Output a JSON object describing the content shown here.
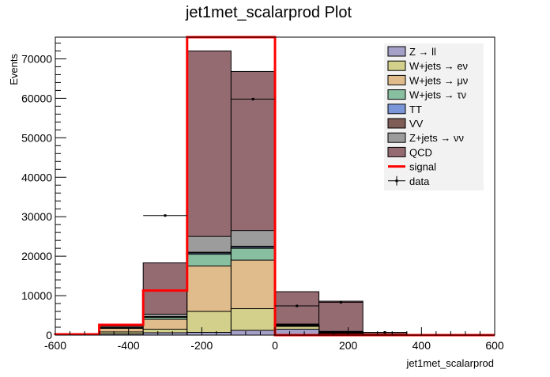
{
  "chart_data": {
    "type": "histogram-stacked",
    "title": "jet1met_scalarprod Plot",
    "xlabel": "jet1met_scalarprod",
    "ylabel": "Events",
    "xlim": [
      -600,
      600
    ],
    "ylim": [
      0,
      75500
    ],
    "x_ticks": [
      -600,
      -400,
      -200,
      0,
      200,
      400,
      600
    ],
    "y_ticks": [
      0,
      10000,
      20000,
      30000,
      40000,
      50000,
      60000,
      70000
    ],
    "x_tick_labels": [
      "-600",
      "-400",
      "-200",
      "0",
      "200",
      "400",
      "600"
    ],
    "y_tick_labels": [
      "0",
      "10000",
      "20000",
      "30000",
      "40000",
      "50000",
      "60000",
      "70000"
    ],
    "bin_edges": [
      -600,
      -480,
      -360,
      -240,
      -120,
      0,
      120,
      240,
      360,
      480,
      600
    ],
    "cumulative_stack": [
      {
        "name": "Z → ll",
        "color": "#a5a0c8",
        "values": [
          0,
          300,
          600,
          700,
          1200,
          1500,
          400,
          100,
          0,
          0
        ]
      },
      {
        "name": "W+jets → eν",
        "color": "#d2d08a",
        "values": [
          0,
          800,
          1500,
          6000,
          6700,
          2200,
          600,
          150,
          0,
          0
        ]
      },
      {
        "name": "W+jets → μν",
        "color": "#e0bc8c",
        "values": [
          0,
          1700,
          4000,
          17500,
          19000,
          2300,
          800,
          200,
          0,
          0
        ]
      },
      {
        "name": "W+jets → τν",
        "color": "#88bfa0",
        "values": [
          0,
          1800,
          4500,
          20500,
          22000,
          2500,
          850,
          220,
          0,
          0
        ]
      },
      {
        "name": "TT",
        "color": "#7b96d8",
        "values": [
          0,
          1800,
          4600,
          20800,
          22300,
          2500,
          860,
          220,
          0,
          0
        ]
      },
      {
        "name": "VV",
        "color": "#7e5e56",
        "values": [
          0,
          1900,
          4700,
          21000,
          22500,
          2600,
          870,
          230,
          0,
          0
        ]
      },
      {
        "name": "Z+jets → νν",
        "color": "#9c9c9c",
        "values": [
          0,
          2200,
          5300,
          25000,
          26500,
          2800,
          950,
          250,
          0,
          0
        ]
      },
      {
        "name": "QCD",
        "color": "#956b72",
        "values": [
          0,
          2400,
          18300,
          72000,
          66800,
          11000,
          8600,
          700,
          0,
          0
        ]
      }
    ],
    "signal": {
      "name": "signal",
      "color": "#ff0000",
      "values": [
        200,
        2600,
        11300,
        79000,
        76000,
        0,
        0,
        0,
        0,
        0
      ]
    },
    "data": {
      "name": "data",
      "points": [
        {
          "x": -300,
          "y": 30300,
          "xerr": 60
        },
        {
          "x": -60,
          "y": 59800,
          "xerr": 60
        },
        {
          "x": 60,
          "y": 7400,
          "xerr": 60
        },
        {
          "x": 180,
          "y": 8300,
          "xerr": 60
        },
        {
          "x": 300,
          "y": 700,
          "xerr": 60
        }
      ]
    },
    "legend": {
      "position": "top-right",
      "entries": [
        {
          "label": "Z → ll",
          "kind": "box",
          "color": "#a5a0c8"
        },
        {
          "label": "W+jets → eν",
          "kind": "box",
          "color": "#d2d08a"
        },
        {
          "label": "W+jets → μν",
          "kind": "box",
          "color": "#e0bc8c"
        },
        {
          "label": "W+jets → τν",
          "kind": "box",
          "color": "#88bfa0"
        },
        {
          "label": "TT",
          "kind": "box",
          "color": "#7b96d8"
        },
        {
          "label": "VV",
          "kind": "box",
          "color": "#7e5e56"
        },
        {
          "label": "Z+jets → νν",
          "kind": "box",
          "color": "#9c9c9c"
        },
        {
          "label": "QCD",
          "kind": "box",
          "color": "#956b72"
        },
        {
          "label": "signal",
          "kind": "line",
          "color": "#ff0000"
        },
        {
          "label": "data",
          "kind": "marker",
          "color": "#000000"
        }
      ]
    }
  }
}
